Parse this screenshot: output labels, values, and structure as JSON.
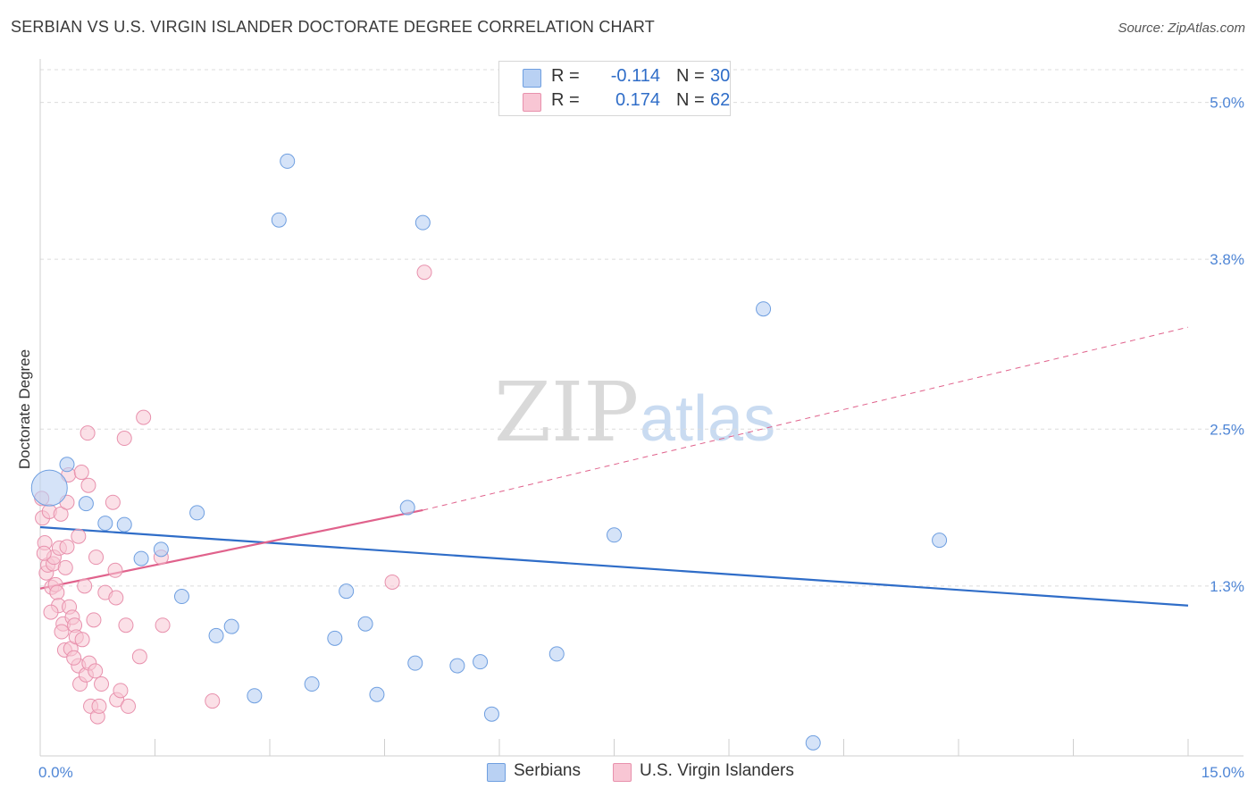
{
  "title": "SERBIAN VS U.S. VIRGIN ISLANDER DOCTORATE DEGREE CORRELATION CHART",
  "source": "Source: ZipAtlas.com",
  "watermark": {
    "zip": "ZIP",
    "atlas": "atlas"
  },
  "colors": {
    "serbians_fill": "#b9d1f3",
    "serbians_stroke": "#6f9fe0",
    "serbians_line": "#2f6dc8",
    "vi_fill": "#f8c6d4",
    "vi_stroke": "#e891ad",
    "vi_line": "#e0628c",
    "tick_text": "#4f86d6",
    "grid": "#dcdcdc"
  },
  "legend": {
    "rows": [
      {
        "r_label": "R =",
        "r_value": "-0.114",
        "n_label": "N =",
        "n_value": "30"
      },
      {
        "r_label": "R =",
        "r_value": "0.174",
        "n_label": "N =",
        "n_value": "62"
      }
    ]
  },
  "bottom_legend": [
    "Serbians",
    "U.S. Virgin Islanders"
  ],
  "chart_data": {
    "type": "scatter",
    "title": "SERBIAN VS U.S. VIRGIN ISLANDER DOCTORATE DEGREE CORRELATION CHART",
    "xlabel": "",
    "ylabel": "Doctorate Degree",
    "xlim": [
      0,
      15
    ],
    "ylim": [
      0,
      5.25
    ],
    "x_tick_labels": [
      {
        "value": 0,
        "label": "0.0%"
      },
      {
        "value": 15,
        "label": "15.0%"
      }
    ],
    "y_tick_labels": [
      {
        "value": 1.3,
        "label": "1.3%"
      },
      {
        "value": 2.5,
        "label": "2.5%"
      },
      {
        "value": 3.8,
        "label": "3.8%"
      },
      {
        "value": 5.0,
        "label": "5.0%"
      }
    ],
    "series": [
      {
        "name": "Serbians",
        "r": -0.114,
        "n": 30,
        "trend": {
          "x0": 0.0,
          "y0": 1.75,
          "x1": 15.0,
          "y1": 1.15
        },
        "points": [
          {
            "x": 0.12,
            "y": 2.05,
            "size": "large"
          },
          {
            "x": 0.35,
            "y": 2.23
          },
          {
            "x": 0.6,
            "y": 1.93
          },
          {
            "x": 0.85,
            "y": 1.78
          },
          {
            "x": 1.1,
            "y": 1.77
          },
          {
            "x": 1.32,
            "y": 1.51
          },
          {
            "x": 1.58,
            "y": 1.58
          },
          {
            "x": 1.85,
            "y": 1.22
          },
          {
            "x": 2.05,
            "y": 1.86
          },
          {
            "x": 2.3,
            "y": 0.92
          },
          {
            "x": 2.5,
            "y": 0.99
          },
          {
            "x": 2.8,
            "y": 0.46
          },
          {
            "x": 3.12,
            "y": 4.1
          },
          {
            "x": 3.23,
            "y": 4.55
          },
          {
            "x": 3.55,
            "y": 0.55
          },
          {
            "x": 3.85,
            "y": 0.9
          },
          {
            "x": 4.0,
            "y": 1.26
          },
          {
            "x": 4.25,
            "y": 1.01
          },
          {
            "x": 4.4,
            "y": 0.47
          },
          {
            "x": 4.8,
            "y": 1.9
          },
          {
            "x": 4.9,
            "y": 0.71
          },
          {
            "x": 5.0,
            "y": 4.08
          },
          {
            "x": 5.45,
            "y": 0.69
          },
          {
            "x": 5.75,
            "y": 0.72
          },
          {
            "x": 5.9,
            "y": 0.32
          },
          {
            "x": 6.75,
            "y": 0.78
          },
          {
            "x": 7.5,
            "y": 1.69
          },
          {
            "x": 9.45,
            "y": 3.42
          },
          {
            "x": 10.1,
            "y": 0.1
          },
          {
            "x": 11.75,
            "y": 1.65
          }
        ]
      },
      {
        "name": "U.S. Virgin Islanders",
        "r": 0.174,
        "n": 62,
        "trend": {
          "x0": 0.0,
          "y0": 1.28,
          "x1": 5.0,
          "y1": 1.88,
          "dashed_to": {
            "x": 15.0,
            "y": 3.28
          }
        },
        "points": [
          {
            "x": 0.02,
            "y": 1.97
          },
          {
            "x": 0.03,
            "y": 1.82
          },
          {
            "x": 0.06,
            "y": 1.63
          },
          {
            "x": 0.08,
            "y": 1.4
          },
          {
            "x": 0.1,
            "y": 1.46
          },
          {
            "x": 0.12,
            "y": 1.87
          },
          {
            "x": 0.15,
            "y": 1.29
          },
          {
            "x": 0.17,
            "y": 1.47
          },
          {
            "x": 0.18,
            "y": 1.52
          },
          {
            "x": 0.2,
            "y": 1.31
          },
          {
            "x": 0.22,
            "y": 1.25
          },
          {
            "x": 0.24,
            "y": 1.15
          },
          {
            "x": 0.25,
            "y": 1.59
          },
          {
            "x": 0.27,
            "y": 1.85
          },
          {
            "x": 0.3,
            "y": 1.01
          },
          {
            "x": 0.32,
            "y": 0.81
          },
          {
            "x": 0.33,
            "y": 1.44
          },
          {
            "x": 0.35,
            "y": 1.6
          },
          {
            "x": 0.35,
            "y": 1.94
          },
          {
            "x": 0.37,
            "y": 2.15
          },
          {
            "x": 0.38,
            "y": 1.14
          },
          {
            "x": 0.4,
            "y": 0.82
          },
          {
            "x": 0.42,
            "y": 1.06
          },
          {
            "x": 0.45,
            "y": 1.0
          },
          {
            "x": 0.47,
            "y": 0.91
          },
          {
            "x": 0.5,
            "y": 0.69
          },
          {
            "x": 0.5,
            "y": 1.68
          },
          {
            "x": 0.52,
            "y": 0.55
          },
          {
            "x": 0.54,
            "y": 2.17
          },
          {
            "x": 0.55,
            "y": 0.89
          },
          {
            "x": 0.6,
            "y": 0.62
          },
          {
            "x": 0.62,
            "y": 2.47
          },
          {
            "x": 0.63,
            "y": 2.07
          },
          {
            "x": 0.64,
            "y": 0.71
          },
          {
            "x": 0.66,
            "y": 0.38
          },
          {
            "x": 0.7,
            "y": 1.04
          },
          {
            "x": 0.72,
            "y": 0.65
          },
          {
            "x": 0.73,
            "y": 1.52
          },
          {
            "x": 0.75,
            "y": 0.3
          },
          {
            "x": 0.77,
            "y": 0.38
          },
          {
            "x": 0.85,
            "y": 1.25
          },
          {
            "x": 0.95,
            "y": 1.94
          },
          {
            "x": 0.98,
            "y": 1.42
          },
          {
            "x": 0.99,
            "y": 1.21
          },
          {
            "x": 1.0,
            "y": 0.43
          },
          {
            "x": 1.05,
            "y": 0.5
          },
          {
            "x": 1.1,
            "y": 2.43
          },
          {
            "x": 1.12,
            "y": 1.0
          },
          {
            "x": 1.15,
            "y": 0.38
          },
          {
            "x": 1.3,
            "y": 0.76
          },
          {
            "x": 1.35,
            "y": 2.59
          },
          {
            "x": 1.58,
            "y": 1.52
          },
          {
            "x": 1.6,
            "y": 1.0
          },
          {
            "x": 2.25,
            "y": 0.42
          },
          {
            "x": 4.6,
            "y": 1.33
          },
          {
            "x": 5.02,
            "y": 3.7
          },
          {
            "x": 0.05,
            "y": 1.55
          },
          {
            "x": 0.14,
            "y": 1.1
          },
          {
            "x": 0.28,
            "y": 0.95
          },
          {
            "x": 0.44,
            "y": 0.75
          },
          {
            "x": 0.58,
            "y": 1.3
          },
          {
            "x": 0.8,
            "y": 0.55
          }
        ]
      }
    ]
  }
}
